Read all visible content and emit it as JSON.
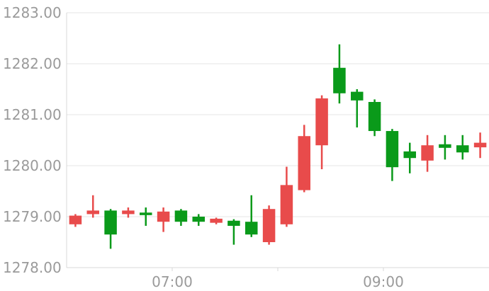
{
  "chart_data": {
    "type": "candlestick",
    "title": "",
    "xlabel": "",
    "ylabel": "",
    "ylim": [
      1278.0,
      1283.0
    ],
    "y_ticks": [
      "1278.00",
      "1279.00",
      "1280.00",
      "1281.00",
      "1282.00",
      "1283.00"
    ],
    "x_ticks": [
      {
        "label": "07:00",
        "index": 5.5
      },
      {
        "label": "09:00",
        "index": 17.5
      }
    ],
    "x_separator_indices": [
      11.5
    ],
    "grid": true,
    "colors": {
      "up": "#e84b4b",
      "down": "#0a9a1a"
    },
    "candles": [
      {
        "open": 1278.85,
        "close": 1279.02,
        "high": 1279.05,
        "low": 1278.8
      },
      {
        "open": 1279.05,
        "close": 1279.12,
        "high": 1279.42,
        "low": 1278.98
      },
      {
        "open": 1279.12,
        "close": 1278.65,
        "high": 1279.15,
        "low": 1278.37
      },
      {
        "open": 1279.05,
        "close": 1279.12,
        "high": 1279.18,
        "low": 1278.98
      },
      {
        "open": 1279.08,
        "close": 1279.03,
        "high": 1279.18,
        "low": 1278.82
      },
      {
        "open": 1278.9,
        "close": 1279.1,
        "high": 1279.18,
        "low": 1278.7
      },
      {
        "open": 1279.12,
        "close": 1278.9,
        "high": 1279.15,
        "low": 1278.82
      },
      {
        "open": 1279.0,
        "close": 1278.9,
        "high": 1279.05,
        "low": 1278.82
      },
      {
        "open": 1278.88,
        "close": 1278.96,
        "high": 1278.98,
        "low": 1278.85
      },
      {
        "open": 1278.92,
        "close": 1278.82,
        "high": 1278.95,
        "low": 1278.45
      },
      {
        "open": 1278.9,
        "close": 1278.65,
        "high": 1279.42,
        "low": 1278.6
      },
      {
        "open": 1278.5,
        "close": 1279.15,
        "high": 1279.22,
        "low": 1278.45
      },
      {
        "open": 1278.85,
        "close": 1279.62,
        "high": 1279.98,
        "low": 1278.8
      },
      {
        "open": 1279.52,
        "close": 1280.58,
        "high": 1280.8,
        "low": 1279.48
      },
      {
        "open": 1280.4,
        "close": 1281.32,
        "high": 1281.38,
        "low": 1279.93
      },
      {
        "open": 1281.92,
        "close": 1281.42,
        "high": 1282.38,
        "low": 1281.22
      },
      {
        "open": 1281.45,
        "close": 1281.28,
        "high": 1281.5,
        "low": 1280.75
      },
      {
        "open": 1281.25,
        "close": 1280.68,
        "high": 1281.3,
        "low": 1280.58
      },
      {
        "open": 1280.68,
        "close": 1279.97,
        "high": 1280.72,
        "low": 1279.7
      },
      {
        "open": 1280.28,
        "close": 1280.15,
        "high": 1280.45,
        "low": 1279.85
      },
      {
        "open": 1280.1,
        "close": 1280.4,
        "high": 1280.6,
        "low": 1279.88
      },
      {
        "open": 1280.42,
        "close": 1280.35,
        "high": 1280.6,
        "low": 1280.12
      },
      {
        "open": 1280.4,
        "close": 1280.26,
        "high": 1280.6,
        "low": 1280.12
      },
      {
        "open": 1280.36,
        "close": 1280.45,
        "high": 1280.65,
        "low": 1280.15
      }
    ]
  }
}
